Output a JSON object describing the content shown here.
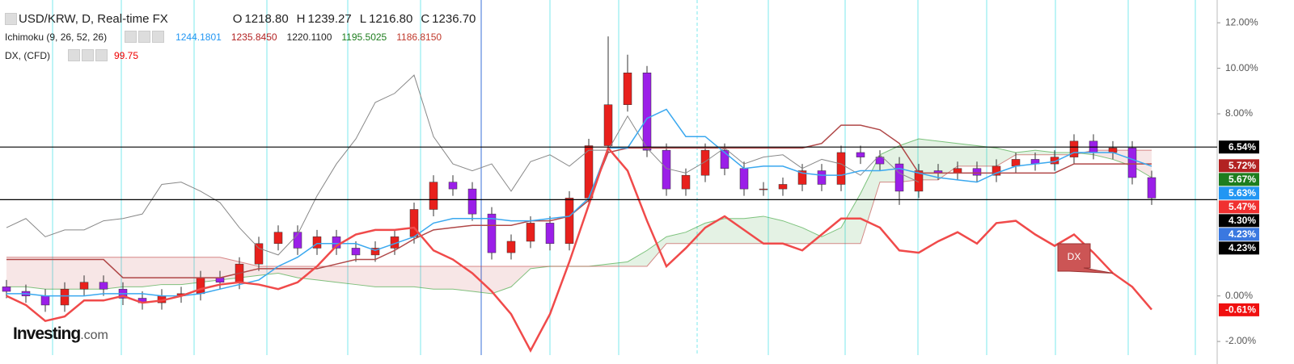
{
  "header": {
    "title": "USD/KRW, D, Real-time FX",
    "ohlc": [
      {
        "key": "O",
        "value": "1218.80"
      },
      {
        "key": "H",
        "value": "1239.27"
      },
      {
        "key": "L",
        "value": "1216.80"
      },
      {
        "key": "C",
        "value": "1236.70"
      }
    ],
    "ichimoku": {
      "name": "Ichimoku (9, 26, 52, 26)",
      "values": [
        {
          "text": "1244.1801",
          "color": "#2196f3"
        },
        {
          "text": "1235.8450",
          "color": "#b22222"
        },
        {
          "text": "1220.1100",
          "color": "#222222"
        },
        {
          "text": "1195.5025",
          "color": "#1e7d1e"
        },
        {
          "text": "1186.8150",
          "color": "#c0392b"
        }
      ]
    },
    "dx": {
      "name": "DX, (CFD)",
      "value": "99.75"
    },
    "logo": "Investing",
    "logo_suffix": ".com"
  },
  "chart_data": {
    "type": "candlestick",
    "up_color": "#e8201c",
    "down_color": "#9b1fe8",
    "open": [
      0.4,
      0.2,
      0.0,
      -0.4,
      0.3,
      0.6,
      0.3,
      -0.1,
      -0.3,
      0.0,
      0.1,
      0.8,
      0.6,
      1.4,
      2.3,
      2.8,
      2.1,
      2.6,
      2.1,
      1.8,
      2.1,
      2.6,
      3.8,
      5.0,
      4.7,
      3.6,
      1.9,
      2.4,
      3.2,
      2.3,
      4.3,
      6.6,
      8.4,
      9.8,
      6.4,
      4.7,
      5.3,
      6.4,
      5.6,
      4.7,
      4.7,
      4.9,
      5.5,
      4.9,
      6.3,
      6.1,
      5.8,
      4.6,
      5.5,
      5.4,
      5.6,
      5.3,
      5.7,
      6.0,
      5.8,
      6.1,
      6.8,
      6.3,
      6.5,
      5.2
    ],
    "high": [
      0.7,
      0.5,
      0.3,
      0.6,
      0.9,
      0.9,
      0.6,
      0.2,
      0.3,
      0.4,
      1.1,
      1.1,
      1.7,
      2.6,
      3.1,
      3.1,
      2.9,
      2.9,
      2.4,
      2.4,
      2.9,
      4.1,
      5.3,
      5.3,
      5.0,
      3.9,
      2.7,
      3.5,
      3.5,
      4.6,
      6.9,
      11.4,
      10.6,
      10.1,
      6.7,
      5.6,
      6.7,
      6.7,
      5.9,
      5.0,
      5.2,
      5.8,
      5.8,
      6.6,
      6.6,
      6.4,
      6.1,
      5.8,
      5.8,
      5.9,
      5.9,
      6.0,
      6.3,
      6.3,
      6.4,
      7.1,
      7.1,
      6.8,
      6.8,
      5.5
    ],
    "low": [
      -0.1,
      -0.3,
      -0.7,
      -0.7,
      0.0,
      0.0,
      -0.4,
      -0.6,
      -0.6,
      -0.3,
      -0.2,
      0.3,
      0.3,
      1.1,
      2.0,
      1.8,
      1.8,
      1.8,
      1.5,
      1.5,
      1.8,
      2.3,
      3.5,
      4.4,
      3.3,
      1.6,
      1.6,
      2.1,
      2.0,
      2.0,
      4.0,
      6.3,
      8.1,
      6.1,
      4.4,
      4.4,
      5.0,
      5.3,
      4.4,
      4.4,
      4.4,
      4.6,
      4.6,
      4.6,
      5.8,
      5.5,
      4.0,
      4.3,
      5.1,
      5.1,
      5.0,
      5.0,
      5.4,
      5.5,
      5.5,
      5.8,
      6.0,
      6.0,
      4.9,
      4.0
    ],
    "close": [
      0.2,
      0.0,
      -0.4,
      0.3,
      0.6,
      0.3,
      -0.1,
      -0.3,
      0.0,
      0.1,
      0.8,
      0.6,
      1.4,
      2.3,
      2.8,
      2.1,
      2.6,
      2.1,
      1.8,
      2.1,
      2.6,
      3.8,
      5.0,
      4.7,
      3.6,
      1.9,
      2.4,
      3.2,
      2.3,
      4.3,
      6.6,
      8.4,
      9.8,
      6.4,
      4.7,
      5.3,
      6.4,
      5.6,
      4.7,
      4.7,
      4.9,
      5.5,
      4.9,
      6.3,
      6.1,
      5.8,
      4.6,
      5.5,
      5.4,
      5.6,
      5.3,
      5.7,
      6.0,
      5.8,
      6.1,
      6.8,
      6.3,
      6.5,
      5.2,
      4.3
    ],
    "cloud": {
      "span_a": [
        0.4,
        0.4,
        0.3,
        0.3,
        0.3,
        0.3,
        0.4,
        0.4,
        0.5,
        0.5,
        0.6,
        0.7,
        0.8,
        0.9,
        1.0,
        0.8,
        0.7,
        0.6,
        0.5,
        0.4,
        0.4,
        0.4,
        0.3,
        0.3,
        0.2,
        0.1,
        0.4,
        1.2,
        1.3,
        1.3,
        1.3,
        1.4,
        1.5,
        2.0,
        2.6,
        2.8,
        3.2,
        3.4,
        3.4,
        3.5,
        3.3,
        3.0,
        2.6,
        3.0,
        4.5,
        6.2,
        6.6,
        6.9,
        6.8,
        6.7,
        6.6,
        6.5,
        6.3,
        6.4,
        6.3,
        6.3,
        6.2,
        6.0,
        5.7,
        5.2
      ],
      "span_b": [
        1.7,
        1.7,
        1.7,
        1.7,
        1.7,
        1.7,
        1.7,
        1.7,
        1.7,
        1.7,
        1.7,
        1.7,
        1.5,
        1.3,
        1.3,
        1.3,
        1.3,
        1.3,
        1.3,
        1.3,
        1.3,
        1.3,
        1.3,
        1.3,
        1.3,
        1.3,
        1.3,
        1.3,
        1.3,
        1.3,
        1.3,
        1.3,
        1.3,
        1.3,
        2.3,
        2.3,
        2.3,
        2.3,
        2.3,
        2.3,
        2.3,
        2.3,
        2.3,
        2.3,
        2.3,
        5.0,
        5.0,
        5.1,
        5.1,
        5.7,
        5.7,
        5.7,
        6.2,
        6.2,
        6.2,
        6.2,
        6.4,
        6.4,
        6.4,
        6.4
      ],
      "up_color": "#2e9e2e",
      "down_color": "#c04040"
    },
    "lines": [
      {
        "color": "#888888",
        "width": 1,
        "values": [
          3.0,
          3.4,
          2.6,
          2.9,
          2.9,
          3.3,
          3.4,
          3.6,
          4.9,
          5.0,
          4.6,
          4.1,
          3.0,
          2.1,
          1.8,
          2.7,
          4.4,
          5.8,
          6.9,
          8.5,
          8.9,
          9.7,
          7.0,
          5.8,
          5.5,
          5.8,
          4.6,
          5.9,
          6.2,
          5.7,
          6.4,
          6.4,
          7.9,
          6.5,
          5.6,
          5.4,
          5.9,
          6.5,
          5.8,
          6.1,
          6.2,
          5.6,
          6.0,
          5.8,
          5.3,
          6.2,
          5.4,
          5.0,
          null,
          null,
          null,
          null,
          null,
          null,
          null,
          null,
          null,
          null,
          null,
          null
        ]
      },
      {
        "color": "#b04848",
        "width": 1.5,
        "values": [
          1.6,
          1.6,
          1.6,
          1.6,
          1.6,
          1.6,
          0.8,
          0.8,
          0.8,
          0.8,
          0.8,
          0.8,
          1.0,
          1.2,
          1.2,
          1.2,
          1.2,
          1.4,
          1.6,
          1.6,
          2.0,
          2.5,
          2.9,
          3.0,
          3.1,
          3.1,
          3.1,
          3.3,
          3.3,
          3.5,
          4.2,
          6.3,
          6.5,
          6.5,
          6.5,
          6.5,
          6.5,
          6.5,
          6.5,
          6.5,
          6.5,
          6.5,
          6.7,
          7.5,
          7.5,
          7.3,
          6.7,
          5.4,
          5.4,
          5.4,
          5.4,
          5.4,
          5.4,
          5.4,
          5.4,
          5.8,
          5.8,
          5.8,
          5.8,
          5.8
        ]
      },
      {
        "color": "#3aa8ef",
        "width": 1.5,
        "values": [
          0.1,
          0.1,
          0.0,
          0.0,
          0.0,
          0.1,
          0.1,
          0.1,
          0.0,
          0.0,
          0.1,
          0.3,
          0.5,
          0.7,
          1.3,
          1.7,
          2.3,
          2.3,
          2.3,
          2.0,
          2.3,
          2.6,
          3.2,
          3.4,
          3.4,
          3.4,
          3.3,
          3.3,
          3.4,
          3.5,
          4.3,
          6.5,
          6.5,
          7.8,
          8.2,
          7.0,
          7.0,
          6.3,
          5.6,
          5.7,
          5.7,
          5.4,
          5.3,
          5.3,
          5.5,
          5.5,
          5.6,
          5.4,
          5.2,
          5.1,
          5.0,
          5.4,
          5.7,
          5.8,
          5.9,
          6.3,
          6.3,
          6.3,
          6.0,
          5.7
        ]
      },
      {
        "color": "#f04a4a",
        "width": 2.5,
        "values": [
          0.0,
          -0.4,
          -1.1,
          -0.9,
          -0.2,
          -0.2,
          0.0,
          -0.3,
          -0.2,
          0.0,
          0.3,
          0.5,
          0.6,
          0.5,
          0.3,
          0.6,
          1.3,
          2.2,
          2.7,
          2.9,
          2.9,
          3.0,
          2.0,
          1.6,
          1.0,
          0.2,
          -0.8,
          -2.4,
          -0.8,
          1.5,
          4.0,
          6.5,
          5.5,
          3.3,
          1.3,
          2.1,
          3.0,
          3.5,
          2.9,
          2.3,
          2.3,
          2.0,
          2.7,
          3.4,
          3.4,
          3.0,
          2.0,
          1.9,
          2.4,
          2.8,
          2.3,
          3.2,
          3.3,
          2.7,
          2.2,
          2.7,
          1.9,
          1.0,
          0.4,
          -0.6
        ]
      }
    ],
    "hlines": [
      6.54,
      4.23
    ],
    "annotation": "DX",
    "ylim": [
      -2.6,
      13.0
    ],
    "yticks": [
      {
        "value": -2,
        "label": "-2.00%"
      },
      {
        "value": 0,
        "label": "0.00%"
      },
      {
        "value": 8,
        "label": "8.00%"
      },
      {
        "value": 10,
        "label": "10.00%"
      },
      {
        "value": 12,
        "label": "12.00%"
      }
    ],
    "price_labels": [
      {
        "value": 6.54,
        "label": "6.54%",
        "color": "#000000"
      },
      {
        "value": 5.72,
        "label": "5.72%",
        "color": "#b22222"
      },
      {
        "value": 5.67,
        "label": "5.67%",
        "color": "#1e7d1e"
      },
      {
        "value": 5.63,
        "label": "5.63%",
        "color": "#2196f3"
      },
      {
        "value": 5.47,
        "label": "5.47%",
        "color": "#f03030"
      },
      {
        "value": 4.3,
        "label": "4.30%",
        "color": "#000000"
      },
      {
        "value": 4.23,
        "label": "4.23%",
        "color": "#3a78e0"
      },
      {
        "value": 4.23,
        "label": "4.23%",
        "color": "#000000"
      },
      {
        "value": -0.61,
        "label": "-0.61%",
        "color": "#f01010"
      }
    ]
  }
}
